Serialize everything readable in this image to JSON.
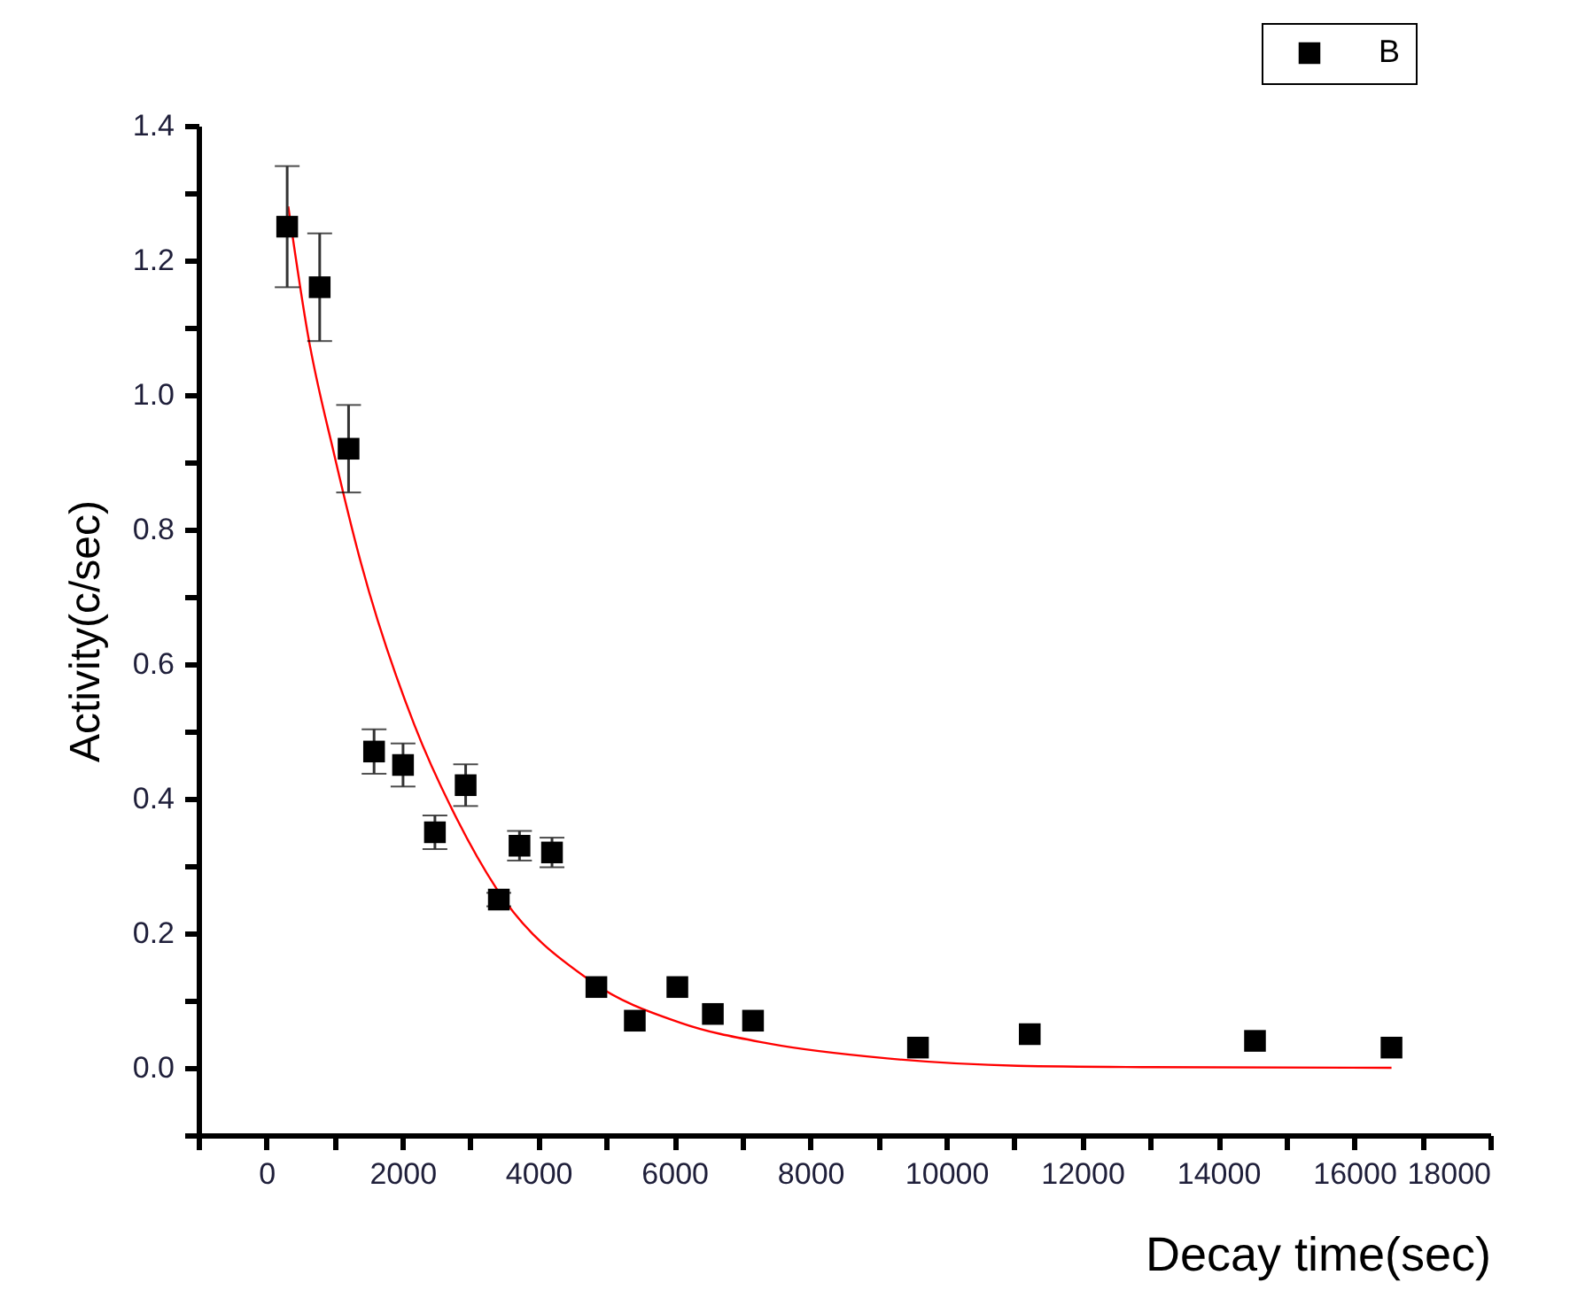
{
  "chart_data": {
    "type": "scatter",
    "xlabel": "Decay time(sec)",
    "ylabel": "Activity(c/sec)",
    "xlim": [
      -1000,
      18000
    ],
    "xticks": [
      {
        "value": -1000,
        "label": null
      },
      0,
      {
        "value": 1000,
        "label": null
      },
      2000,
      {
        "value": 3000,
        "label": null
      },
      4000,
      {
        "value": 5000,
        "label": null
      },
      6000,
      {
        "value": 7000,
        "label": null
      },
      8000,
      {
        "value": 9000,
        "label": null
      },
      10000,
      {
        "value": 11000,
        "label": null
      },
      12000,
      {
        "value": 13000,
        "label": null
      },
      14000,
      {
        "value": 15000,
        "label": null
      },
      16000,
      {
        "value": 17000,
        "label": null
      },
      18000
    ],
    "ylim": [
      -0.1,
      1.4
    ],
    "yticks": [
      {
        "value": -0.1,
        "label": null
      },
      {
        "value": 0,
        "label": "0.0"
      },
      {
        "value": 0.1,
        "label": null
      },
      {
        "value": 0.2,
        "label": "0.2"
      },
      {
        "value": 0.3,
        "label": null
      },
      {
        "value": 0.4,
        "label": "0.4"
      },
      {
        "value": 0.5,
        "label": null
      },
      {
        "value": 0.6,
        "label": "0.6"
      },
      {
        "value": 0.7,
        "label": null
      },
      {
        "value": 0.8,
        "label": "0.8"
      },
      {
        "value": 0.9,
        "label": null
      },
      {
        "value": 1,
        "label": "1.0"
      },
      {
        "value": 1.1,
        "label": null
      },
      {
        "value": 1.2,
        "label": "1.2"
      },
      {
        "value": 1.3,
        "label": null
      },
      {
        "value": 1.4,
        "label": "1.4"
      }
    ],
    "grid": false,
    "legend": "top right",
    "series": [
      {
        "name": "B",
        "marker": "square",
        "color": "#000000",
        "x": [
          305,
          783,
          1208,
          1583,
          2009,
          2478,
          2930,
          3418,
          3722,
          4200,
          4853,
          5418,
          6044,
          6566,
          7157,
          9583,
          11227,
          14540,
          16548
        ],
        "values": [
          1.25,
          1.16,
          0.92,
          0.47,
          0.45,
          0.35,
          0.42,
          0.25,
          0.33,
          0.32,
          0.12,
          0.07,
          0.12,
          0.08,
          0.07,
          0.03,
          0.05,
          0.04,
          0.03
        ],
        "errors": [
          0.09,
          0.08,
          0.065,
          0.033,
          0.032,
          0.025,
          0.031,
          0.01,
          0.022,
          0.022,
          null,
          null,
          null,
          null,
          null,
          null,
          null,
          null,
          null
        ]
      },
      {
        "type": "line",
        "marker": "none",
        "color": "#ff0000",
        "line_style": "solid",
        "x": [
          321,
          609,
          1000,
          1391,
          2174,
          2800,
          3392,
          4783,
          6087,
          7391,
          9130,
          11045,
          13000,
          16548
        ],
        "values": [
          1.28,
          1.09,
          0.91,
          0.75,
          0.51,
          0.37,
          0.265,
          0.128,
          0.067,
          0.036,
          0.014,
          0.003,
          0.001,
          0
        ]
      }
    ]
  }
}
